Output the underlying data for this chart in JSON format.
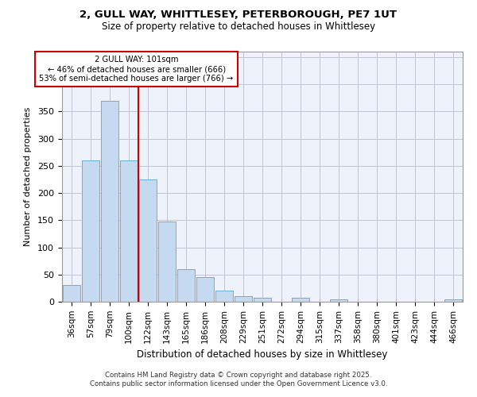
{
  "title_line1": "2, GULL WAY, WHITTLESEY, PETERBOROUGH, PE7 1UT",
  "title_line2": "Size of property relative to detached houses in Whittlesey",
  "xlabel": "Distribution of detached houses by size in Whittlesey",
  "ylabel": "Number of detached properties",
  "categories": [
    "36sqm",
    "57sqm",
    "79sqm",
    "100sqm",
    "122sqm",
    "143sqm",
    "165sqm",
    "186sqm",
    "208sqm",
    "229sqm",
    "251sqm",
    "272sqm",
    "294sqm",
    "315sqm",
    "337sqm",
    "358sqm",
    "380sqm",
    "401sqm",
    "423sqm",
    "444sqm",
    "466sqm"
  ],
  "values": [
    30,
    260,
    370,
    260,
    225,
    148,
    60,
    45,
    20,
    10,
    7,
    0,
    8,
    0,
    5,
    0,
    0,
    0,
    0,
    0,
    5
  ],
  "bar_color": "#c5d9f0",
  "bar_edge_color": "#6baed6",
  "grid_color": "#bbbbcc",
  "plot_bg_color": "#eef2fa",
  "fig_bg_color": "#ffffff",
  "ref_line_x": 3.5,
  "ref_line_color": "#cc0000",
  "annotation_text_line1": "2 GULL WAY: 101sqm",
  "annotation_text_line2": "← 46% of detached houses are smaller (666)",
  "annotation_text_line3": "53% of semi-detached houses are larger (766) →",
  "annotation_box_color": "#ffffff",
  "annotation_box_edge_color": "#cc0000",
  "ylim": [
    0,
    460
  ],
  "yticks": [
    0,
    50,
    100,
    150,
    200,
    250,
    300,
    350,
    400,
    450
  ],
  "footer_line1": "Contains HM Land Registry data © Crown copyright and database right 2025.",
  "footer_line2": "Contains public sector information licensed under the Open Government Licence v3.0."
}
